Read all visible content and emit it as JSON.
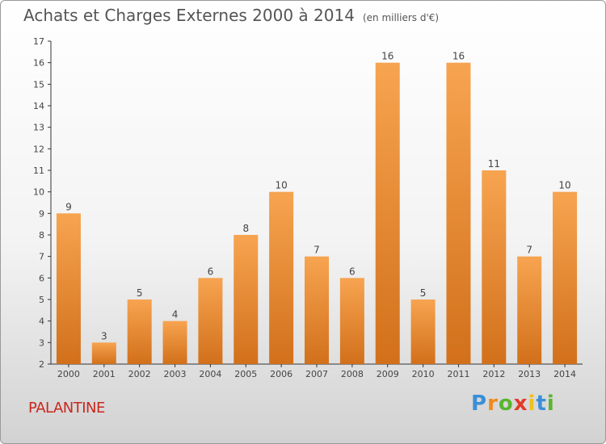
{
  "chart_data": {
    "type": "bar",
    "title": "Achats et Charges Externes 2000 à 2014",
    "subtitle": "(en milliers d'€)",
    "categories": [
      "2000",
      "2001",
      "2002",
      "2003",
      "2004",
      "2005",
      "2006",
      "2007",
      "2008",
      "2009",
      "2010",
      "2011",
      "2012",
      "2013",
      "2014"
    ],
    "values": [
      9,
      3,
      5,
      4,
      6,
      8,
      10,
      7,
      6,
      16,
      5,
      16,
      11,
      7,
      10
    ],
    "ylim": [
      2,
      17
    ],
    "yticks": [
      2,
      3,
      4,
      5,
      6,
      7,
      8,
      9,
      10,
      11,
      12,
      13,
      14,
      15,
      16,
      17
    ],
    "grid": false,
    "bar_color_top": "#f7a450",
    "bar_color_bottom": "#d2701b",
    "label": "PALANTINE"
  },
  "logo": {
    "text": "Proxiti",
    "letters": [
      "P",
      "r",
      "o",
      "x",
      "i",
      "t",
      "i"
    ],
    "colors": [
      "#3a8fd8",
      "#f08a1c",
      "#58b530",
      "#e23a2a",
      "#f0c020",
      "#3a8fd8",
      "#58b530"
    ]
  },
  "colors": {
    "axis": "#333333",
    "text": "#444444",
    "commune": "#c8281e"
  }
}
